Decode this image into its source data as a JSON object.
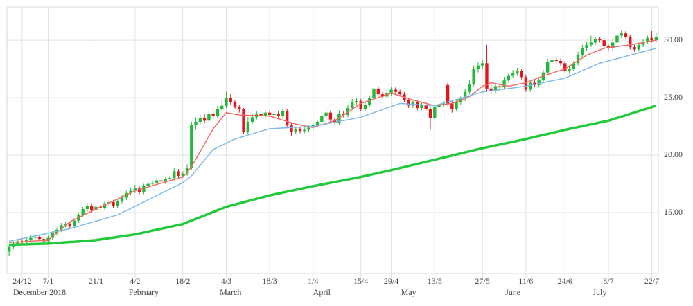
{
  "chart_data": {
    "type": "candlestick",
    "categories": [
      null,
      null,
      null,
      "24/12",
      null,
      null,
      null,
      null,
      null,
      "7/1",
      null,
      null,
      null,
      null,
      null,
      null,
      null,
      null,
      null,
      null,
      "21/1",
      null,
      null,
      null,
      null,
      null,
      null,
      null,
      null,
      "4/2",
      null,
      null,
      null,
      null,
      null,
      null,
      null,
      null,
      null,
      null,
      "18/2",
      null,
      null,
      null,
      null,
      null,
      null,
      null,
      null,
      null,
      "4/3",
      null,
      null,
      null,
      null,
      null,
      null,
      null,
      null,
      null,
      "18/3",
      null,
      null,
      null,
      null,
      null,
      null,
      null,
      null,
      null,
      "1/4",
      null,
      null,
      null,
      null,
      null,
      null,
      null,
      null,
      null,
      null,
      "15/4",
      null,
      null,
      null,
      null,
      null,
      null,
      "29/4",
      null,
      null,
      null,
      null,
      null,
      null,
      null,
      null,
      null,
      "13/5",
      null,
      null,
      null,
      null,
      null,
      null,
      null,
      null,
      null,
      null,
      "27/5",
      null,
      null,
      null,
      null,
      null,
      null,
      null,
      null,
      null,
      "11/6",
      null,
      null,
      null,
      null,
      null,
      null,
      null,
      null,
      "24/6",
      null,
      null,
      null,
      null,
      null,
      null,
      null,
      null,
      null,
      "8/7",
      null,
      null,
      null,
      null,
      null,
      null,
      null,
      null,
      null,
      "22/7",
      null
    ],
    "months": [
      null,
      null,
      null,
      null,
      null,
      null,
      null,
      "December 2018",
      null,
      null,
      null,
      null,
      null,
      null,
      null,
      null,
      null,
      null,
      null,
      null,
      null,
      null,
      null,
      null,
      null,
      null,
      null,
      null,
      null,
      null,
      null,
      "February",
      null,
      null,
      null,
      null,
      null,
      null,
      null,
      null,
      null,
      null,
      null,
      null,
      null,
      null,
      null,
      null,
      null,
      null,
      null,
      "March",
      null,
      null,
      null,
      null,
      null,
      null,
      null,
      null,
      null,
      null,
      null,
      null,
      null,
      null,
      null,
      null,
      null,
      null,
      null,
      null,
      "April",
      null,
      null,
      null,
      null,
      null,
      null,
      null,
      null,
      null,
      null,
      null,
      null,
      null,
      null,
      null,
      null,
      null,
      null,
      null,
      "May",
      null,
      null,
      null,
      null,
      null,
      null,
      null,
      null,
      null,
      null,
      null,
      null,
      null,
      null,
      null,
      null,
      null,
      null,
      null,
      null,
      null,
      null,
      null,
      "June",
      null,
      null,
      null,
      null,
      null,
      null,
      null,
      null,
      null,
      null,
      null,
      null,
      null,
      null,
      null,
      null,
      null,
      null,
      null,
      "July",
      null,
      null,
      null,
      null,
      null,
      null,
      null,
      null,
      null,
      null,
      null,
      null,
      null
    ],
    "open": [
      11.6,
      12.0,
      12.3,
      12.5,
      12.4,
      12.6,
      12.8,
      12.9,
      12.7,
      12.5,
      12.8,
      13.2,
      13.5,
      13.9,
      14.0,
      13.8,
      14.3,
      14.8,
      15.3,
      15.6,
      15.2,
      15.5,
      15.4,
      15.8,
      15.9,
      15.6,
      16.0,
      16.3,
      16.7,
      16.9,
      17.1,
      16.8,
      17.3,
      17.5,
      17.6,
      17.8,
      17.7,
      17.9,
      18.0,
      18.6,
      18.2,
      18.4,
      18.9,
      22.6,
      22.9,
      23.2,
      23.0,
      23.6,
      23.4,
      24.0,
      24.3,
      25.0,
      24.6,
      24.2,
      24.0,
      22.0,
      22.9,
      23.3,
      23.6,
      23.4,
      23.7,
      23.5,
      23.6,
      23.4,
      23.8,
      22.6,
      22.0,
      22.3,
      22.1,
      22.2,
      22.4,
      22.6,
      22.9,
      23.4,
      23.7,
      23.1,
      22.8,
      23.6,
      23.5,
      24.1,
      24.6,
      24.7,
      24.0,
      24.4,
      25.0,
      25.8,
      25.3,
      25.1,
      25.4,
      25.7,
      25.5,
      25.3,
      24.8,
      24.3,
      24.6,
      24.1,
      24.4,
      24.0,
      23.2,
      24.2,
      24.4,
      26.1,
      24.5,
      24.0,
      24.6,
      24.9,
      25.5,
      26.2,
      27.5,
      27.8,
      28.0,
      25.8,
      25.6,
      26.0,
      25.9,
      26.5,
      26.9,
      27.1,
      27.3,
      26.8,
      25.7,
      26.3,
      26.1,
      26.5,
      27.2,
      28.1,
      28.3,
      28.2,
      28.0,
      27.3,
      27.5,
      28.0,
      28.7,
      29.3,
      29.6,
      29.8,
      30.1,
      30.0,
      29.5,
      29.3,
      29.8,
      30.4,
      30.6,
      30.3,
      29.4,
      29.2,
      29.6,
      29.9,
      30.2,
      30.0
    ],
    "high": [
      12.2,
      12.5,
      12.7,
      12.7,
      12.8,
      13.0,
      13.1,
      13.1,
      12.9,
      13.0,
      13.4,
      13.7,
      14.1,
      14.2,
      14.2,
      14.5,
      15.0,
      15.5,
      15.8,
      15.8,
      15.7,
      15.7,
      16.0,
      16.1,
      16.1,
      16.2,
      16.5,
      16.9,
      17.2,
      17.4,
      17.3,
      17.5,
      17.7,
      17.8,
      18.0,
      18.0,
      18.1,
      18.2,
      18.9,
      18.8,
      18.6,
      19.2,
      22.9,
      23.3,
      23.5,
      23.6,
      23.9,
      23.8,
      24.3,
      24.8,
      25.5,
      25.3,
      24.8,
      24.4,
      24.1,
      23.3,
      23.6,
      23.8,
      23.9,
      23.9,
      23.9,
      23.8,
      23.8,
      24.0,
      24.0,
      22.8,
      22.5,
      22.5,
      22.4,
      22.6,
      22.8,
      23.1,
      23.7,
      24.0,
      23.9,
      23.3,
      23.9,
      23.8,
      24.4,
      24.9,
      25.0,
      24.9,
      24.6,
      25.2,
      26.1,
      26.0,
      25.5,
      25.7,
      25.9,
      25.9,
      25.7,
      25.5,
      25.0,
      24.8,
      24.8,
      24.6,
      24.6,
      24.2,
      24.4,
      24.6,
      24.7,
      26.3,
      24.7,
      24.8,
      25.1,
      25.8,
      26.5,
      27.8,
      28.1,
      28.3,
      29.6,
      26.1,
      26.3,
      26.3,
      26.8,
      27.1,
      27.4,
      27.6,
      27.5,
      27.0,
      26.5,
      26.5,
      26.7,
      27.4,
      28.4,
      28.6,
      28.5,
      28.4,
      28.2,
      27.8,
      28.2,
      29.0,
      29.6,
      29.9,
      30.4,
      30.3,
      30.3,
      30.2,
      29.7,
      30.1,
      30.7,
      30.9,
      30.8,
      30.5,
      29.6,
      29.8,
      30.1,
      30.4,
      30.8,
      30.6
    ],
    "low": [
      11.2,
      11.8,
      12.1,
      12.2,
      12.2,
      12.4,
      12.6,
      12.5,
      12.3,
      12.3,
      12.6,
      13.0,
      13.3,
      13.7,
      13.6,
      13.6,
      14.1,
      14.6,
      15.1,
      15.0,
      15.0,
      15.2,
      15.2,
      15.6,
      15.4,
      15.4,
      15.8,
      16.1,
      16.5,
      16.7,
      16.6,
      16.6,
      17.1,
      17.3,
      17.4,
      17.5,
      17.5,
      17.7,
      17.8,
      18.0,
      18.0,
      18.2,
      18.7,
      22.2,
      22.7,
      22.8,
      22.8,
      23.2,
      23.2,
      23.8,
      24.1,
      24.4,
      24.0,
      23.7,
      21.8,
      21.8,
      22.7,
      23.1,
      23.2,
      23.2,
      23.3,
      23.3,
      23.2,
      23.2,
      22.4,
      21.7,
      21.8,
      21.9,
      21.9,
      22.0,
      22.2,
      22.4,
      22.7,
      23.2,
      22.9,
      22.6,
      22.6,
      23.3,
      23.3,
      23.9,
      24.4,
      23.8,
      23.8,
      24.2,
      24.8,
      25.1,
      24.9,
      24.9,
      25.2,
      25.3,
      25.1,
      24.6,
      24.1,
      24.1,
      23.9,
      23.9,
      23.8,
      22.2,
      23.0,
      24.0,
      24.2,
      24.3,
      23.7,
      23.8,
      24.4,
      24.7,
      25.3,
      26.0,
      27.2,
      27.5,
      25.5,
      25.3,
      25.4,
      25.6,
      25.7,
      26.3,
      26.7,
      26.9,
      26.6,
      25.5,
      25.5,
      25.9,
      25.9,
      26.3,
      27.0,
      27.9,
      28.0,
      27.8,
      27.1,
      27.1,
      27.3,
      27.8,
      28.5,
      29.1,
      29.4,
      29.6,
      29.8,
      29.3,
      29.1,
      29.1,
      29.6,
      30.2,
      30.1,
      29.2,
      29.0,
      29.0,
      29.4,
      29.7,
      29.8,
      29.8
    ],
    "close": [
      12.0,
      12.3,
      12.5,
      12.4,
      12.6,
      12.8,
      12.9,
      12.7,
      12.5,
      12.8,
      13.2,
      13.5,
      13.9,
      14.0,
      13.8,
      14.3,
      14.8,
      15.3,
      15.6,
      15.2,
      15.5,
      15.4,
      15.8,
      15.9,
      15.6,
      16.0,
      16.3,
      16.7,
      16.9,
      17.1,
      16.8,
      17.3,
      17.5,
      17.6,
      17.8,
      17.7,
      17.9,
      18.0,
      18.6,
      18.2,
      18.4,
      18.9,
      22.6,
      22.9,
      23.2,
      23.0,
      23.6,
      23.4,
      24.0,
      24.3,
      25.0,
      24.6,
      24.2,
      24.0,
      22.0,
      22.9,
      23.3,
      23.6,
      23.4,
      23.7,
      23.5,
      23.6,
      23.4,
      23.8,
      22.6,
      22.0,
      22.3,
      22.1,
      22.2,
      22.4,
      22.6,
      22.9,
      23.4,
      23.7,
      23.1,
      22.8,
      23.6,
      23.5,
      24.1,
      24.6,
      24.7,
      24.0,
      24.4,
      25.0,
      25.8,
      25.3,
      25.1,
      25.4,
      25.7,
      25.5,
      25.3,
      24.8,
      24.3,
      24.6,
      24.1,
      24.4,
      24.0,
      23.2,
      24.2,
      24.4,
      24.5,
      24.5,
      24.0,
      24.6,
      24.9,
      25.5,
      26.2,
      27.5,
      27.8,
      28.0,
      25.8,
      25.6,
      26.0,
      25.9,
      26.5,
      26.9,
      27.1,
      27.3,
      26.8,
      25.7,
      26.3,
      26.1,
      26.5,
      27.2,
      28.1,
      28.3,
      28.2,
      28.0,
      27.3,
      27.5,
      28.0,
      28.7,
      29.3,
      29.6,
      29.8,
      30.1,
      30.0,
      29.5,
      29.3,
      29.8,
      30.4,
      30.6,
      30.3,
      29.4,
      29.2,
      29.6,
      29.9,
      30.2,
      30.0,
      30.3
    ],
    "up_color": "#22b83a",
    "down_color": "#e3141e",
    "series": [
      {
        "color": "#f26b66",
        "values": [
          12.4,
          12.42,
          12.44,
          12.47,
          12.49,
          12.51,
          12.53,
          12.56,
          12.58,
          12.6,
          12.92,
          13.24,
          13.56,
          13.88,
          14.2,
          14.38,
          14.57,
          14.75,
          14.93,
          15.12,
          15.3,
          15.48,
          15.66,
          15.83,
          16.01,
          16.19,
          16.37,
          16.54,
          16.72,
          16.9,
          17.01,
          17.12,
          17.23,
          17.34,
          17.45,
          17.55,
          17.66,
          17.77,
          17.88,
          17.99,
          18.1,
          18.5,
          19.0,
          19.66,
          20.32,
          20.98,
          21.64,
          22.3,
          22.77,
          23.23,
          23.7,
          23.63,
          23.57,
          23.5,
          23.49,
          23.47,
          23.46,
          23.44,
          23.43,
          23.41,
          23.4,
          23.28,
          23.17,
          23.05,
          22.93,
          22.82,
          22.7,
          22.63,
          22.55,
          22.48,
          22.4,
          22.52,
          22.64,
          22.76,
          22.88,
          23.0,
          23.25,
          23.5,
          23.75,
          24.0,
          24.25,
          24.5,
          24.63,
          24.76,
          24.89,
          25.01,
          25.14,
          25.27,
          25.4,
          25.28,
          25.16,
          25.04,
          24.92,
          24.8,
          24.7,
          24.6,
          24.5,
          24.4,
          24.3,
          24.35,
          24.4,
          24.45,
          24.5,
          24.65,
          24.8,
          24.95,
          25.1,
          25.4,
          25.7,
          26.0,
          26.15,
          26.3,
          26.23,
          26.15,
          26.08,
          26.0,
          26.08,
          26.15,
          26.23,
          26.3,
          26.45,
          26.6,
          26.75,
          26.9,
          27.02,
          27.14,
          27.26,
          27.38,
          27.5,
          27.74,
          27.98,
          28.22,
          28.46,
          28.7,
          28.85,
          29.0,
          29.15,
          29.3,
          29.35,
          29.4,
          29.45,
          29.5,
          29.55,
          29.6,
          29.67,
          29.73,
          29.8,
          29.87,
          29.93,
          30.0
        ]
      },
      {
        "color": "#7fbbe8",
        "values": [
          12.5,
          12.58,
          12.66,
          12.74,
          12.81,
          12.89,
          12.97,
          13.05,
          13.13,
          13.21,
          13.29,
          13.36,
          13.44,
          13.52,
          13.6,
          13.71,
          13.82,
          13.93,
          14.04,
          14.15,
          14.25,
          14.36,
          14.47,
          14.58,
          14.69,
          14.8,
          14.99,
          15.17,
          15.36,
          15.55,
          15.73,
          15.92,
          16.11,
          16.29,
          16.48,
          16.67,
          16.85,
          17.04,
          17.23,
          17.41,
          17.6,
          17.9,
          18.2,
          18.66,
          19.12,
          19.58,
          20.04,
          20.5,
          20.68,
          20.86,
          21.04,
          21.22,
          21.4,
          21.51,
          21.63,
          21.74,
          21.85,
          21.96,
          22.08,
          22.19,
          22.3,
          22.32,
          22.34,
          22.36,
          22.38,
          22.4,
          22.42,
          22.44,
          22.46,
          22.48,
          22.5,
          22.57,
          22.65,
          22.72,
          22.79,
          22.86,
          22.94,
          23.01,
          23.08,
          23.15,
          23.23,
          23.3,
          23.43,
          23.57,
          23.7,
          23.83,
          23.97,
          24.1,
          24.23,
          24.37,
          24.5,
          24.48,
          24.45,
          24.43,
          24.4,
          24.38,
          24.35,
          24.33,
          24.3,
          24.41,
          24.52,
          24.63,
          24.74,
          24.85,
          24.95,
          25.06,
          25.17,
          25.28,
          25.39,
          25.5,
          25.55,
          25.6,
          25.65,
          25.7,
          25.75,
          25.8,
          25.85,
          25.9,
          25.95,
          26.0,
          26.08,
          26.16,
          26.23,
          26.31,
          26.39,
          26.47,
          26.54,
          26.62,
          26.7,
          26.86,
          27.03,
          27.19,
          27.35,
          27.51,
          27.68,
          27.84,
          28.0,
          28.1,
          28.2,
          28.3,
          28.4,
          28.5,
          28.6,
          28.7,
          28.8,
          28.9,
          29.0,
          29.1,
          29.2,
          29.3
        ]
      },
      {
        "color": "#22c93a",
        "values": [
          12.2,
          12.21,
          12.22,
          12.23,
          12.24,
          12.26,
          12.27,
          12.28,
          12.29,
          12.3,
          12.33,
          12.35,
          12.38,
          12.41,
          12.44,
          12.46,
          12.49,
          12.52,
          12.55,
          12.57,
          12.6,
          12.66,
          12.71,
          12.77,
          12.82,
          12.88,
          12.93,
          12.99,
          13.04,
          13.1,
          13.18,
          13.26,
          13.35,
          13.43,
          13.51,
          13.59,
          13.67,
          13.75,
          13.84,
          13.92,
          14.0,
          14.15,
          14.3,
          14.45,
          14.6,
          14.75,
          14.9,
          15.05,
          15.2,
          15.35,
          15.5,
          15.6,
          15.7,
          15.8,
          15.9,
          16.0,
          16.1,
          16.2,
          16.3,
          16.4,
          16.5,
          16.58,
          16.66,
          16.74,
          16.82,
          16.9,
          16.98,
          17.06,
          17.14,
          17.22,
          17.3,
          17.37,
          17.45,
          17.52,
          17.59,
          17.66,
          17.74,
          17.81,
          17.88,
          17.95,
          18.03,
          18.1,
          18.19,
          18.27,
          18.36,
          18.44,
          18.53,
          18.61,
          18.7,
          18.79,
          18.88,
          18.97,
          19.06,
          19.15,
          19.24,
          19.33,
          19.42,
          19.51,
          19.6,
          19.69,
          19.78,
          19.87,
          19.96,
          20.05,
          20.15,
          20.24,
          20.33,
          20.42,
          20.51,
          20.6,
          20.68,
          20.76,
          20.84,
          20.92,
          21.0,
          21.08,
          21.16,
          21.24,
          21.32,
          21.4,
          21.49,
          21.58,
          21.67,
          21.76,
          21.84,
          21.93,
          22.02,
          22.11,
          22.2,
          22.28,
          22.36,
          22.44,
          22.52,
          22.6,
          22.68,
          22.76,
          22.84,
          22.92,
          23.0,
          23.12,
          23.24,
          23.35,
          23.47,
          23.59,
          23.71,
          23.83,
          23.95,
          24.06,
          24.18,
          24.3
        ]
      }
    ],
    "ylim": [
      9.7,
      32.9
    ],
    "yticks": [
      {
        "value": 15,
        "label": "15.00"
      },
      {
        "value": 20,
        "label": "20.00"
      },
      {
        "value": 25,
        "label": "25.00"
      },
      {
        "value": 30,
        "label": "30.00"
      }
    ],
    "grid": true
  }
}
